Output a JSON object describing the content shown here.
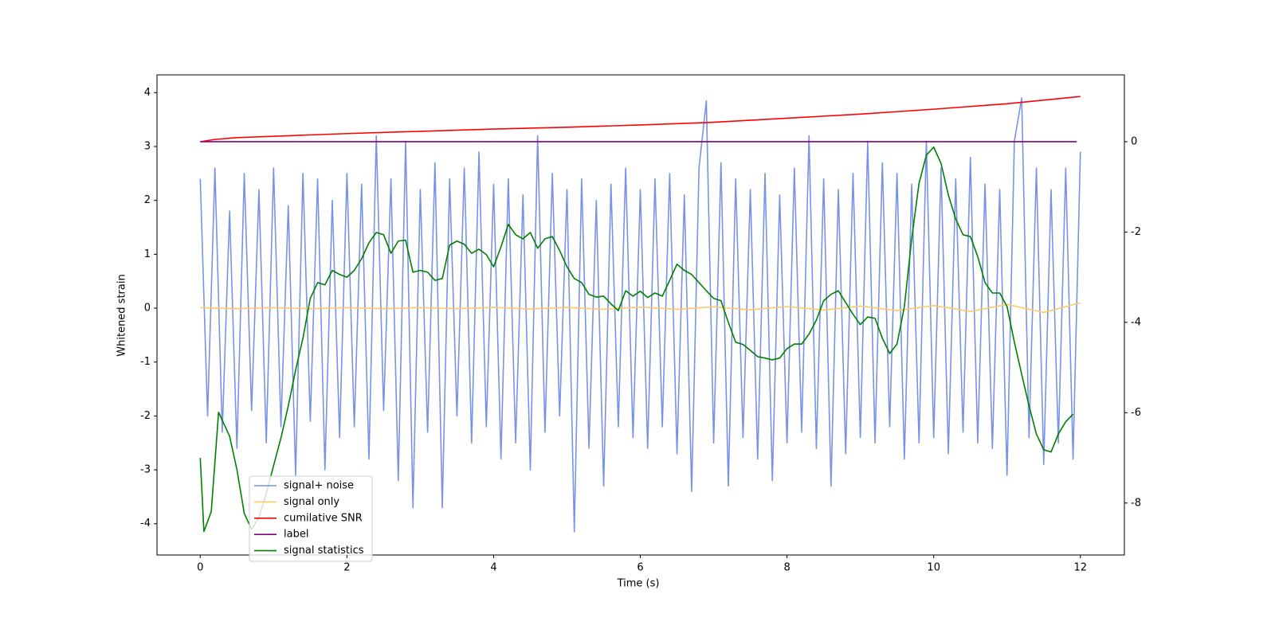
{
  "chart_data": {
    "type": "line",
    "xlabel": "Time (s)",
    "ylabel": "Whitened strain",
    "xlim": [
      -0.59,
      12.6
    ],
    "xticks": [
      0,
      2,
      4,
      6,
      8,
      10,
      12
    ],
    "ylim": [
      -4.58,
      4.33
    ],
    "yticks": [
      -4,
      -3,
      -2,
      -1,
      0,
      1,
      2,
      3,
      4
    ],
    "y2lim": [
      -9.15,
      1.48
    ],
    "y2ticks": [
      -8,
      -6,
      -4,
      -2,
      0
    ],
    "legend": "lower left",
    "series": [
      {
        "name": "signal+ noise",
        "color": "#7893e6",
        "x": [
          0,
          0.1,
          0.2,
          0.3,
          0.4,
          0.5,
          0.6,
          0.7,
          0.8,
          0.9,
          1,
          1.1,
          1.2,
          1.3,
          1.4,
          1.5,
          1.6,
          1.7,
          1.8,
          1.9,
          2,
          2.1,
          2.2,
          2.3,
          2.4,
          2.5,
          2.6,
          2.7,
          2.8,
          2.9,
          3,
          3.1,
          3.2,
          3.3,
          3.4,
          3.5,
          3.6,
          3.7,
          3.8,
          3.9,
          4,
          4.1,
          4.2,
          4.3,
          4.4,
          4.5,
          4.6,
          4.7,
          4.8,
          4.9,
          5,
          5.1,
          5.2,
          5.3,
          5.4,
          5.5,
          5.6,
          5.7,
          5.8,
          5.9,
          6,
          6.1,
          6.2,
          6.3,
          6.4,
          6.5,
          6.6,
          6.7,
          6.8,
          6.9,
          7,
          7.1,
          7.2,
          7.3,
          7.4,
          7.5,
          7.6,
          7.7,
          7.8,
          7.9,
          8,
          8.1,
          8.2,
          8.3,
          8.4,
          8.5,
          8.6,
          8.7,
          8.8,
          8.9,
          9,
          9.1,
          9.2,
          9.3,
          9.4,
          9.5,
          9.6,
          9.7,
          9.8,
          9.9,
          10,
          10.1,
          10.2,
          10.3,
          10.4,
          10.5,
          10.6,
          10.7,
          10.8,
          10.9,
          11,
          11.1,
          11.2,
          11.3,
          11.4,
          11.5,
          11.6,
          11.7,
          11.8,
          11.9,
          12
        ],
        "values": [
          2.4,
          -2.0,
          2.6,
          -2.3,
          1.8,
          -2.6,
          2.5,
          -1.9,
          2.2,
          -2.5,
          2.6,
          -2.2,
          1.9,
          -3.1,
          2.5,
          -2.1,
          2.4,
          -3.0,
          2.0,
          -2.4,
          2.5,
          -2.2,
          2.3,
          -2.8,
          3.2,
          -1.9,
          2.4,
          -3.2,
          3.1,
          -3.7,
          2.2,
          -2.3,
          2.7,
          -3.7,
          2.4,
          -2.0,
          2.6,
          -2.5,
          2.9,
          -2.2,
          2.3,
          -2.8,
          2.4,
          -2.5,
          2.1,
          -3.0,
          3.2,
          -2.3,
          2.5,
          -2.0,
          2.2,
          -4.15,
          2.4,
          -2.6,
          2.0,
          -3.3,
          2.3,
          -2.2,
          2.6,
          -2.4,
          2.2,
          -2.6,
          2.4,
          -2.2,
          2.5,
          -2.7,
          2.1,
          -3.4,
          2.6,
          3.85,
          -2.5,
          2.7,
          -3.3,
          2.4,
          -2.4,
          2.2,
          -2.8,
          2.5,
          -3.2,
          2.1,
          -2.5,
          2.6,
          -2.3,
          3.2,
          -2.6,
          2.4,
          -3.3,
          2.2,
          -2.7,
          2.5,
          -2.4,
          3.1,
          -2.5,
          2.7,
          -2.2,
          2.5,
          -2.8,
          2.3,
          -2.5,
          3.1,
          -2.4,
          2.6,
          -2.7,
          2.4,
          -2.3,
          2.8,
          -2.5,
          2.3,
          -2.6,
          2.2,
          -3.1,
          3.1,
          3.9,
          -2.4,
          2.6,
          -2.9,
          2.2,
          -2.5,
          2.6,
          -2.8,
          2.9
        ]
      },
      {
        "name": "signal only",
        "color": "#ffc966",
        "x": [
          0,
          0.5,
          1,
          1.5,
          2,
          2.5,
          3,
          3.5,
          4,
          4.5,
          5,
          5.5,
          6,
          6.5,
          7,
          7.5,
          8,
          8.5,
          9,
          9.5,
          10,
          10.5,
          11,
          11.5,
          12
        ],
        "values": [
          0.01,
          -0.01,
          0.01,
          -0.01,
          0.01,
          -0.01,
          0.01,
          -0.01,
          0.015,
          -0.015,
          0.015,
          -0.02,
          0.02,
          -0.02,
          0.025,
          -0.03,
          0.03,
          -0.035,
          0.04,
          -0.045,
          0.05,
          -0.06,
          0.07,
          -0.08,
          0.1
        ]
      },
      {
        "name": "cumilative SNR",
        "color": "#ff0000",
        "axis": "y2",
        "x": [
          0,
          0.2,
          0.5,
          1,
          2,
          3,
          4,
          5,
          6,
          7,
          8,
          9,
          10,
          11,
          12
        ],
        "values": [
          0,
          0.05,
          0.09,
          0.12,
          0.18,
          0.23,
          0.28,
          0.32,
          0.37,
          0.43,
          0.52,
          0.61,
          0.72,
          0.84,
          1.0
        ]
      },
      {
        "name": "label",
        "color": "#800080",
        "axis": "y2",
        "x": [
          0,
          11.95
        ],
        "values": [
          0,
          0
        ]
      },
      {
        "name": "signal statistics",
        "color": "#008000",
        "axis": "y2",
        "x": [
          0,
          0.05,
          0.15,
          0.25,
          0.4,
          0.5,
          0.6,
          0.7,
          0.8,
          0.9,
          1,
          1.1,
          1.2,
          1.3,
          1.4,
          1.5,
          1.6,
          1.7,
          1.8,
          1.9,
          2,
          2.1,
          2.2,
          2.3,
          2.4,
          2.5,
          2.6,
          2.7,
          2.8,
          2.9,
          3,
          3.1,
          3.2,
          3.3,
          3.4,
          3.5,
          3.6,
          3.7,
          3.8,
          3.9,
          4,
          4.1,
          4.2,
          4.3,
          4.4,
          4.5,
          4.6,
          4.7,
          4.8,
          4.9,
          5,
          5.1,
          5.2,
          5.3,
          5.4,
          5.5,
          5.6,
          5.7,
          5.8,
          5.9,
          6,
          6.1,
          6.2,
          6.3,
          6.4,
          6.5,
          6.6,
          6.7,
          6.8,
          6.9,
          7,
          7.1,
          7.2,
          7.3,
          7.4,
          7.5,
          7.6,
          7.7,
          7.8,
          7.9,
          8,
          8.1,
          8.2,
          8.3,
          8.4,
          8.5,
          8.6,
          8.7,
          8.8,
          8.9,
          9,
          9.1,
          9.2,
          9.3,
          9.4,
          9.5,
          9.6,
          9.7,
          9.8,
          9.9,
          10,
          10.1,
          10.2,
          10.3,
          10.4,
          10.5,
          10.6,
          10.7,
          10.8,
          10.9,
          11,
          11.1,
          11.2,
          11.3,
          11.4,
          11.5,
          11.6,
          11.7,
          11.8,
          11.9
        ],
        "values": [
          -7.0,
          -8.63,
          -8.19,
          -5.99,
          -6.52,
          -7.26,
          -8.23,
          -8.58,
          -8.32,
          -7.79,
          -7.17,
          -6.56,
          -5.85,
          -5.06,
          -4.35,
          -3.47,
          -3.12,
          -3.17,
          -2.85,
          -2.94,
          -3.0,
          -2.85,
          -2.59,
          -2.24,
          -2.01,
          -2.06,
          -2.47,
          -2.2,
          -2.18,
          -2.89,
          -2.85,
          -2.89,
          -3.07,
          -3.03,
          -2.29,
          -2.2,
          -2.27,
          -2.47,
          -2.38,
          -2.5,
          -2.77,
          -2.33,
          -1.83,
          -2.06,
          -2.15,
          -2.01,
          -2.36,
          -2.15,
          -2.1,
          -2.41,
          -2.77,
          -3.03,
          -3.12,
          -3.38,
          -3.44,
          -3.42,
          -3.59,
          -3.74,
          -3.3,
          -3.42,
          -3.31,
          -3.45,
          -3.35,
          -3.42,
          -3.07,
          -2.71,
          -2.85,
          -2.94,
          -3.12,
          -3.3,
          -3.47,
          -3.52,
          -4.0,
          -4.44,
          -4.49,
          -4.62,
          -4.76,
          -4.79,
          -4.83,
          -4.79,
          -4.58,
          -4.48,
          -4.48,
          -4.26,
          -3.95,
          -3.52,
          -3.38,
          -3.3,
          -3.56,
          -3.82,
          -4.05,
          -3.88,
          -3.91,
          -4.35,
          -4.69,
          -4.48,
          -3.65,
          -2.15,
          -0.92,
          -0.3,
          -0.12,
          -0.48,
          -1.18,
          -1.71,
          -2.06,
          -2.1,
          -2.54,
          -3.12,
          -3.35,
          -3.35,
          -3.65,
          -4.44,
          -5.15,
          -5.85,
          -6.47,
          -6.82,
          -6.87,
          -6.47,
          -6.2,
          -6.03
        ]
      }
    ]
  }
}
